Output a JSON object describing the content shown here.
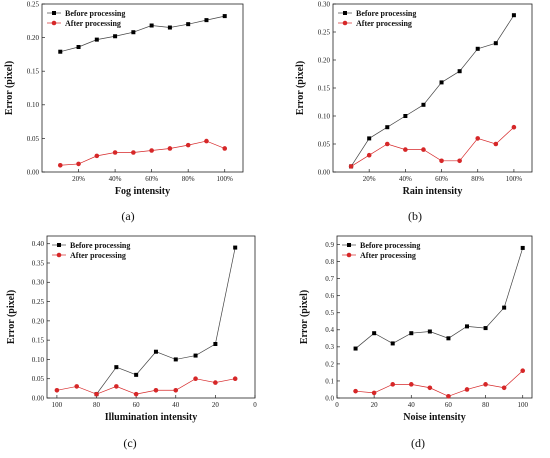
{
  "chart_data": [
    {
      "type": "line",
      "caption": "(a)",
      "xlabel": "Fog intensity",
      "ylabel": "Error (pixel)",
      "x": [
        10,
        20,
        30,
        40,
        50,
        60,
        70,
        80,
        90,
        100
      ],
      "xlim": [
        0,
        110
      ],
      "xticks": [
        20,
        40,
        60,
        80,
        100
      ],
      "xtick_labels": [
        "20%",
        "40%",
        "60%",
        "80%",
        "100%"
      ],
      "ylim": [
        0,
        0.25
      ],
      "yticks": [
        0,
        0.05,
        0.1,
        0.15,
        0.2,
        0.25
      ],
      "ytick_labels": [
        "0.00",
        "0.05",
        "0.10",
        "0.15",
        "0.20",
        "0.25"
      ],
      "legend": "top-left",
      "grid": false,
      "series": [
        {
          "name": "Before processing",
          "color": "#000000",
          "marker": "square",
          "values": [
            0.179,
            0.186,
            0.197,
            0.202,
            0.208,
            0.218,
            0.215,
            0.22,
            0.226,
            0.232
          ]
        },
        {
          "name": "After processing",
          "color": "#d62728",
          "marker": "circle",
          "values": [
            0.01,
            0.012,
            0.024,
            0.029,
            0.029,
            0.032,
            0.035,
            0.04,
            0.046,
            0.035
          ]
        }
      ]
    },
    {
      "type": "line",
      "caption": "(b)",
      "xlabel": "Rain intensity",
      "ylabel": "Error (pixel)",
      "x": [
        10,
        20,
        30,
        40,
        50,
        60,
        70,
        80,
        90,
        100
      ],
      "xlim": [
        0,
        110
      ],
      "xticks": [
        20,
        40,
        60,
        80,
        100
      ],
      "xtick_labels": [
        "20%",
        "40%",
        "60%",
        "80%",
        "100%"
      ],
      "ylim": [
        0,
        0.3
      ],
      "yticks": [
        0,
        0.05,
        0.1,
        0.15,
        0.2,
        0.25,
        0.3
      ],
      "ytick_labels": [
        "0.00",
        "0.05",
        "0.10",
        "0.15",
        "0.20",
        "0.25",
        "0.30"
      ],
      "legend": "top-left",
      "grid": false,
      "series": [
        {
          "name": "Before processing",
          "color": "#000000",
          "marker": "square",
          "values": [
            0.01,
            0.06,
            0.08,
            0.1,
            0.12,
            0.16,
            0.18,
            0.22,
            0.23,
            0.28
          ]
        },
        {
          "name": "After processing",
          "color": "#d62728",
          "marker": "circle",
          "values": [
            0.01,
            0.03,
            0.05,
            0.04,
            0.04,
            0.02,
            0.02,
            0.06,
            0.05,
            0.08
          ]
        }
      ]
    },
    {
      "type": "line",
      "caption": "(c)",
      "xlabel": "Illumination intensity",
      "ylabel": "Error (pixel)",
      "x": [
        100,
        90,
        80,
        70,
        60,
        50,
        40,
        30,
        20,
        10
      ],
      "xlim": [
        105,
        0
      ],
      "xticks": [
        100,
        80,
        60,
        40,
        20,
        0
      ],
      "xtick_labels": [
        "100",
        "80",
        "60",
        "40",
        "20",
        "0"
      ],
      "ylim": [
        0,
        0.42
      ],
      "yticks": [
        0,
        0.05,
        0.1,
        0.15,
        0.2,
        0.25,
        0.3,
        0.35,
        0.4
      ],
      "ytick_labels": [
        "0.00",
        "0.05",
        "0.10",
        "0.15",
        "0.20",
        "0.25",
        "0.30",
        "0.35",
        "0.40"
      ],
      "legend": "top-left",
      "grid": false,
      "series": [
        {
          "name": "Before processing",
          "color": "#000000",
          "marker": "square",
          "values": [
            null,
            null,
            0.01,
            0.08,
            0.06,
            0.12,
            0.1,
            0.11,
            0.14,
            0.39
          ]
        },
        {
          "name": "After processing",
          "color": "#d62728",
          "marker": "circle",
          "values": [
            0.02,
            0.03,
            0.01,
            0.03,
            0.01,
            0.02,
            0.02,
            0.05,
            0.04,
            0.05
          ]
        }
      ]
    },
    {
      "type": "line",
      "caption": "(d)",
      "xlabel": "Noise intensity",
      "ylabel": "Error (pixel)",
      "x": [
        10,
        20,
        30,
        40,
        50,
        60,
        70,
        80,
        90,
        100
      ],
      "xlim": [
        0,
        105
      ],
      "xticks": [
        0,
        20,
        40,
        60,
        80,
        100
      ],
      "xtick_labels": [
        "0",
        "20",
        "40",
        "60",
        "80",
        "100"
      ],
      "ylim": [
        0,
        0.95
      ],
      "yticks": [
        0,
        0.1,
        0.2,
        0.3,
        0.4,
        0.5,
        0.6,
        0.7,
        0.8,
        0.9
      ],
      "ytick_labels": [
        "0.0",
        "0.1",
        "0.2",
        "0.3",
        "0.4",
        "0.5",
        "0.6",
        "0.7",
        "0.8",
        "0.9"
      ],
      "legend": "top-left",
      "grid": false,
      "series": [
        {
          "name": "Before processing",
          "color": "#000000",
          "marker": "square",
          "values": [
            0.29,
            0.38,
            0.32,
            0.38,
            0.39,
            0.35,
            0.42,
            0.41,
            0.53,
            0.88
          ]
        },
        {
          "name": "After processing",
          "color": "#d62728",
          "marker": "circle",
          "values": [
            0.04,
            0.03,
            0.08,
            0.08,
            0.06,
            0.01,
            0.05,
            0.08,
            0.06,
            0.16
          ]
        }
      ]
    }
  ]
}
